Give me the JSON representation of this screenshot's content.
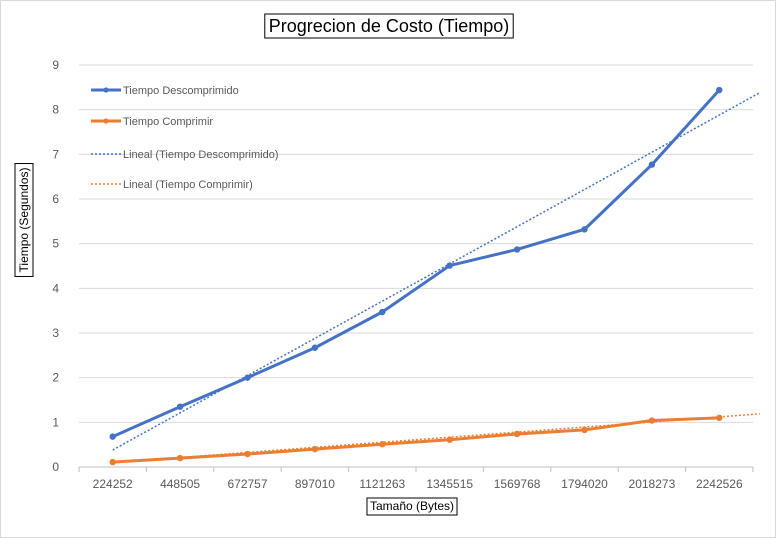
{
  "chart_data": {
    "type": "line",
    "title": "Progrecion de Costo (Tiempo)",
    "xlabel": "Tamaño (Bytes)",
    "ylabel": "Tiempo (Segundos)",
    "categories": [
      "224252",
      "448505",
      "672757",
      "897010",
      "1121263",
      "1345515",
      "1569768",
      "1794020",
      "2018273",
      "2242526"
    ],
    "ylim": [
      0,
      9
    ],
    "yticks": [
      "0",
      "1",
      "2",
      "3",
      "4",
      "5",
      "6",
      "7",
      "8",
      "9"
    ],
    "grid": true,
    "legend_position": "top-left",
    "series": [
      {
        "name": "Tiempo Descomprimido",
        "values": [
          0.68,
          1.35,
          2.0,
          2.67,
          3.47,
          4.51,
          4.87,
          5.32,
          6.77,
          8.44
        ],
        "color": "#4472c4"
      },
      {
        "name": "Tiempo Comprimir",
        "values": [
          0.11,
          0.2,
          0.29,
          0.4,
          0.51,
          0.61,
          0.74,
          0.83,
          1.04,
          1.1
        ],
        "color": "#ed7d31"
      }
    ],
    "trendlines": [
      {
        "name": "Lineal (Tiempo Descomprimido)",
        "start": 0.38,
        "end": 8.38,
        "color": "#4472c4"
      },
      {
        "name": "Lineal (Tiempo Comprimir)",
        "start": 0.1,
        "end": 1.19,
        "color": "#ed7d31"
      }
    ]
  }
}
